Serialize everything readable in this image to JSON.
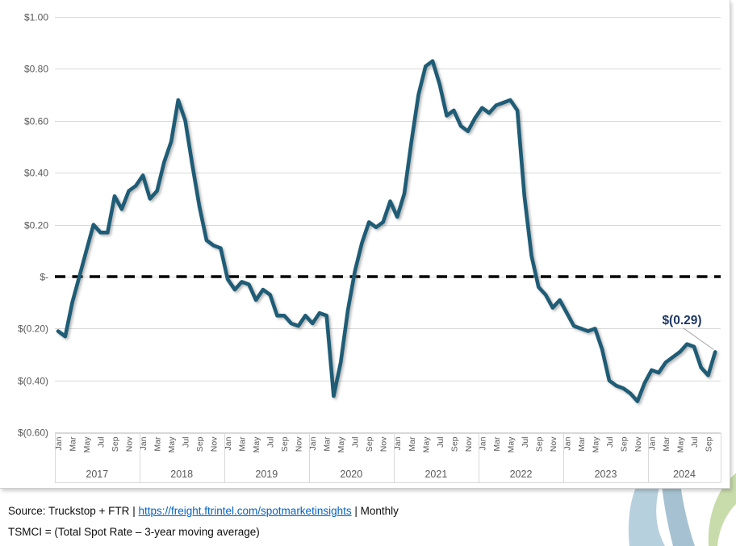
{
  "chart_data": {
    "type": "line",
    "title": "",
    "series": [
      {
        "name": "TSMCI",
        "values": [
          -0.21,
          -0.23,
          -0.1,
          0.0,
          0.1,
          0.2,
          0.17,
          0.17,
          0.31,
          0.26,
          0.33,
          0.35,
          0.39,
          0.3,
          0.33,
          0.44,
          0.52,
          0.68,
          0.6,
          0.43,
          0.27,
          0.14,
          0.12,
          0.11,
          -0.01,
          -0.05,
          -0.02,
          -0.03,
          -0.09,
          -0.05,
          -0.07,
          -0.15,
          -0.15,
          -0.18,
          -0.19,
          -0.15,
          -0.18,
          -0.14,
          -0.15,
          -0.46,
          -0.33,
          -0.13,
          0.02,
          0.13,
          0.21,
          0.19,
          0.21,
          0.29,
          0.23,
          0.32,
          0.52,
          0.7,
          0.81,
          0.83,
          0.74,
          0.62,
          0.64,
          0.58,
          0.56,
          0.61,
          0.65,
          0.63,
          0.66,
          0.67,
          0.68,
          0.64,
          0.31,
          0.08,
          -0.04,
          -0.07,
          -0.12,
          -0.09,
          -0.14,
          -0.19,
          -0.2,
          -0.21,
          -0.2,
          -0.28,
          -0.4,
          -0.42,
          -0.43,
          -0.45,
          -0.48,
          -0.41,
          -0.36,
          -0.37,
          -0.33,
          -0.31,
          -0.29,
          -0.26,
          -0.27,
          -0.35,
          -0.38,
          -0.29
        ]
      }
    ],
    "x_unit": "month",
    "years": [
      {
        "label": "2017",
        "n_months": 12
      },
      {
        "label": "2018",
        "n_months": 12
      },
      {
        "label": "2019",
        "n_months": 12
      },
      {
        "label": "2020",
        "n_months": 12
      },
      {
        "label": "2021",
        "n_months": 12
      },
      {
        "label": "2022",
        "n_months": 12
      },
      {
        "label": "2023",
        "n_months": 12
      },
      {
        "label": "2024",
        "n_months": 10
      }
    ],
    "month_tick_labels": [
      "Jan",
      "Mar",
      "May",
      "Jul",
      "Sep",
      "Nov"
    ],
    "y_ticks": [
      {
        "v": 1.0,
        "label": "$1.00"
      },
      {
        "v": 0.8,
        "label": "$0.80"
      },
      {
        "v": 0.6,
        "label": "$0.60"
      },
      {
        "v": 0.4,
        "label": "$0.40"
      },
      {
        "v": 0.2,
        "label": "$0.20"
      },
      {
        "v": 0.0,
        "label": "$-"
      },
      {
        "v": -0.2,
        "label": "$(0.20)"
      },
      {
        "v": -0.4,
        "label": "$(0.40)"
      },
      {
        "v": -0.6,
        "label": "$(0.60)"
      }
    ],
    "ylim": [
      -0.6,
      1.0
    ],
    "grid": "horizontal",
    "legend": "none",
    "zero_line": {
      "style": "dashed",
      "color": "#000000"
    },
    "annotation": {
      "text": "$(0.29)",
      "attached_value": -0.29
    },
    "colors": {
      "line": "#1f5c76",
      "annotation_text": "#1f3864",
      "gridline": "#d9d9d9",
      "axis_text": "#595959",
      "leader_line": "#a0a0a0"
    }
  },
  "footer": {
    "source_prefix": "Source: Truckstop + FTR",
    "separator": "|",
    "link_text": "https://freight.ftrintel.com/spotmarketinsights",
    "suffix": "Monthly",
    "definition": "TSMCI = (Total Spot Rate – 3-year moving average)",
    "link_color": "#0563c1"
  },
  "decoration": {
    "swoosh_colors": [
      "#b6d0de",
      "#a6c2d2",
      "#c8dcab"
    ]
  }
}
